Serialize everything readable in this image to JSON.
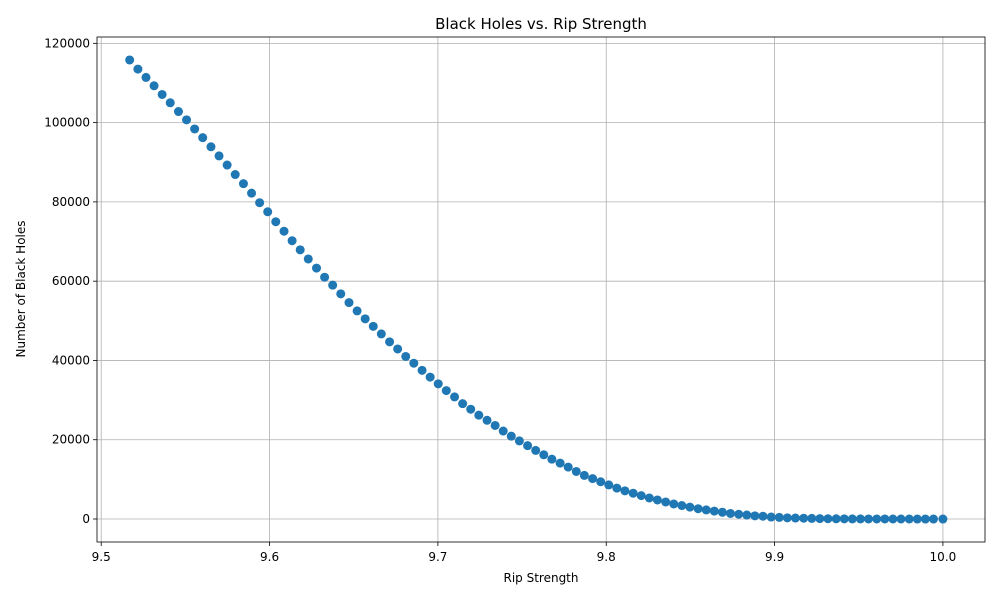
{
  "chart_data": {
    "type": "scatter",
    "title": "Black Holes vs. Rip Strength",
    "xlabel": "Rip Strength",
    "ylabel": "Number of Black Holes",
    "xlim": [
      9.4975,
      10.025
    ],
    "ylim": [
      -5800,
      121600
    ],
    "x_ticks": [
      9.5,
      9.6,
      9.7,
      9.8,
      9.9,
      10.0
    ],
    "x_tick_labels": [
      "9.5",
      "9.6",
      "9.7",
      "9.8",
      "9.9",
      "10.0"
    ],
    "y_ticks": [
      0,
      20000,
      40000,
      60000,
      80000,
      100000,
      120000
    ],
    "y_tick_labels": [
      "0",
      "20000",
      "40000",
      "60000",
      "80000",
      "100000",
      "120000"
    ],
    "grid": true,
    "marker_color": "#1f77b4",
    "series": [
      {
        "x": [
          9.5169,
          9.5218,
          9.5266,
          9.5314,
          9.5362,
          9.541,
          9.5459,
          9.5507,
          9.5555,
          9.5603,
          9.5652,
          9.57,
          9.5748,
          9.5796,
          9.5845,
          9.5893,
          9.5941,
          9.5989,
          9.6037,
          9.6086,
          9.6134,
          9.6182,
          9.623,
          9.6279,
          9.6327,
          9.6375,
          9.6423,
          9.6472,
          9.652,
          9.6568,
          9.6616,
          9.6664,
          9.6713,
          9.6761,
          9.6809,
          9.6857,
          9.6906,
          9.6954,
          9.7002,
          9.705,
          9.7099,
          9.7147,
          9.7195,
          9.7243,
          9.7292,
          9.734,
          9.7388,
          9.7436,
          9.7484,
          9.7533,
          9.7581,
          9.7629,
          9.7677,
          9.7726,
          9.7774,
          9.7822,
          9.787,
          9.7919,
          9.7967,
          9.8015,
          9.8063,
          9.8111,
          9.816,
          9.8208,
          9.8256,
          9.8304,
          9.8353,
          9.8401,
          9.8449,
          9.8497,
          9.8546,
          9.8594,
          9.8642,
          9.869,
          9.8738,
          9.8787,
          9.8835,
          9.8883,
          9.8931,
          9.898,
          9.9028,
          9.9076,
          9.9124,
          9.9173,
          9.9221,
          9.9269,
          9.9317,
          9.9366,
          9.9414,
          9.9462,
          9.951,
          9.9558,
          9.9607,
          9.9655,
          9.9703,
          9.9751,
          9.98,
          9.9848,
          9.9896,
          9.9944,
          10.0
        ],
        "y": [
          115800,
          113500,
          111400,
          109300,
          107100,
          105000,
          102800,
          100700,
          98400,
          96200,
          93900,
          91600,
          89300,
          86900,
          84600,
          82200,
          79800,
          77500,
          75000,
          72600,
          70200,
          67900,
          65600,
          63300,
          61000,
          59000,
          56800,
          54600,
          52500,
          50500,
          48600,
          46700,
          44700,
          42900,
          41000,
          39300,
          37500,
          35800,
          34100,
          32400,
          30800,
          29100,
          27700,
          26200,
          24900,
          23600,
          22200,
          20900,
          19700,
          18500,
          17300,
          16200,
          15100,
          14100,
          13100,
          12000,
          11000,
          10200,
          9400,
          8600,
          7800,
          7100,
          6500,
          5900,
          5300,
          4800,
          4300,
          3800,
          3400,
          3000,
          2600,
          2300,
          2000,
          1700,
          1400,
          1200,
          1000,
          800,
          700,
          500,
          400,
          300,
          250,
          200,
          150,
          100,
          80,
          60,
          40,
          30,
          20,
          15,
          10,
          5,
          3,
          2,
          1,
          0,
          0,
          0,
          0
        ]
      }
    ]
  }
}
